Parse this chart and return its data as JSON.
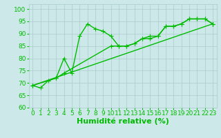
{
  "xlabel": "Humidité relative (%)",
  "ylabel_ticks": [
    60,
    65,
    70,
    75,
    80,
    85,
    90,
    95,
    100
  ],
  "xlim": [
    -0.5,
    23.5
  ],
  "ylim": [
    60,
    102
  ],
  "bg_color": "#cce8e8",
  "grid_color": "#aacccc",
  "line_color": "#00bb00",
  "line1_x": [
    0,
    1,
    2,
    3,
    4,
    5,
    6,
    7,
    8,
    9,
    10,
    11,
    12,
    13,
    14,
    15,
    16,
    17,
    18,
    19,
    20,
    21,
    22,
    23
  ],
  "line1_y": [
    69,
    68,
    71,
    72,
    80,
    74,
    89,
    94,
    92,
    91,
    89,
    85,
    85,
    86,
    88,
    89,
    89,
    93,
    93,
    94,
    96,
    96,
    96,
    94
  ],
  "line2_x": [
    0,
    3,
    4,
    10,
    11,
    12,
    13,
    14,
    15,
    16,
    17,
    18,
    19,
    20,
    21,
    22,
    23
  ],
  "line2_y": [
    69,
    72,
    74,
    85,
    85,
    85,
    86,
    88,
    88,
    89,
    93,
    93,
    94,
    96,
    96,
    96,
    94
  ],
  "line3_x": [
    0,
    23
  ],
  "line3_y": [
    69,
    94
  ],
  "marker": "+",
  "markersize": 4,
  "linewidth": 1.0,
  "xlabel_fontsize": 8,
  "tick_fontsize": 6.5,
  "xlabel_color": "#00bb00",
  "tick_color": "#00bb00",
  "spine_color": "#aacccc"
}
